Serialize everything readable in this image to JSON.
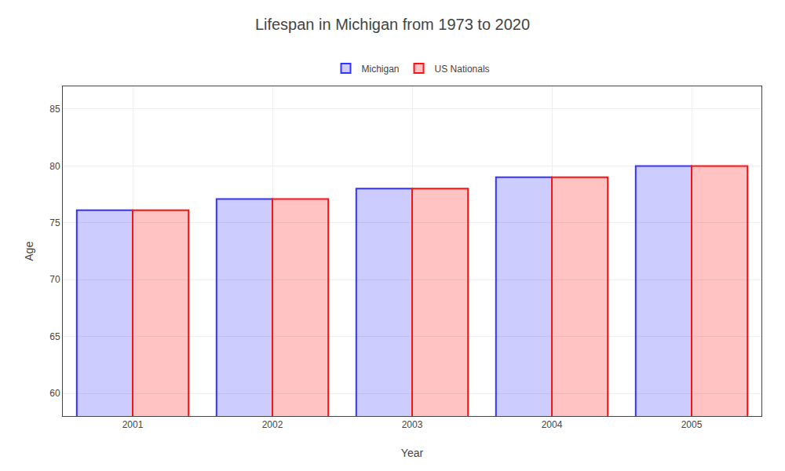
{
  "chart_data": {
    "type": "bar",
    "title": "Lifespan in Michigan from 1973 to 2020",
    "xlabel": "Year",
    "ylabel": "Age",
    "categories": [
      "2001",
      "2002",
      "2003",
      "2004",
      "2005"
    ],
    "series": [
      {
        "name": "Michigan",
        "color": "#3333ff",
        "values": [
          76.1,
          77.1,
          78.0,
          79.0,
          80.0
        ]
      },
      {
        "name": "US Nationals",
        "color": "#ff1111",
        "values": [
          76.1,
          77.1,
          78.0,
          79.0,
          80.0
        ]
      }
    ],
    "ylim": [
      58,
      87
    ],
    "yticks": [
      60,
      65,
      70,
      75,
      80,
      85
    ],
    "grid": true,
    "legend": "top"
  }
}
